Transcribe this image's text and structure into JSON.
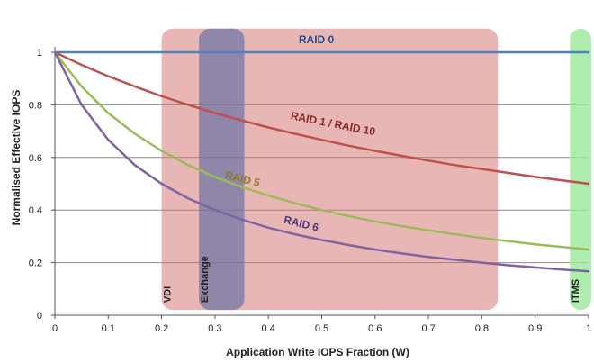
{
  "chart_data": {
    "type": "line",
    "xlabel": "Application Write IOPS Fraction (W)",
    "ylabel": "Normalised Effective IOPS",
    "xlim": [
      0,
      1
    ],
    "ylim": [
      0,
      1
    ],
    "x_ticks": [
      "0",
      "0.1",
      "0.2",
      "0.3",
      "0.4",
      "0.5",
      "0.6",
      "0.7",
      "0.8",
      "0.9",
      "1"
    ],
    "y_ticks": [
      "0",
      "0.2",
      "0.4",
      "0.6",
      "0.8",
      "1"
    ],
    "grid": "horizontal",
    "x": [
      0,
      0.05,
      0.1,
      0.15,
      0.2,
      0.25,
      0.3,
      0.35,
      0.4,
      0.45,
      0.5,
      0.55,
      0.6,
      0.65,
      0.7,
      0.75,
      0.8,
      0.85,
      0.9,
      0.95,
      1
    ],
    "series": [
      {
        "name": "RAID 0",
        "color": "#4f81bd",
        "values": [
          1,
          1,
          1,
          1,
          1,
          1,
          1,
          1,
          1,
          1,
          1,
          1,
          1,
          1,
          1,
          1,
          1,
          1,
          1,
          1,
          1
        ]
      },
      {
        "name": "RAID 1 / RAID 10",
        "color": "#c0504d",
        "values": [
          1,
          0.952,
          0.909,
          0.87,
          0.833,
          0.8,
          0.769,
          0.741,
          0.714,
          0.69,
          0.667,
          0.645,
          0.625,
          0.606,
          0.588,
          0.571,
          0.556,
          0.541,
          0.526,
          0.513,
          0.5
        ]
      },
      {
        "name": "RAID 5",
        "color": "#9bbb59",
        "values": [
          1,
          0.87,
          0.769,
          0.69,
          0.625,
          0.571,
          0.526,
          0.488,
          0.455,
          0.426,
          0.4,
          0.377,
          0.357,
          0.339,
          0.323,
          0.308,
          0.294,
          0.282,
          0.27,
          0.26,
          0.25
        ]
      },
      {
        "name": "RAID 6",
        "color": "#8064a2",
        "values": [
          1,
          0.8,
          0.667,
          0.571,
          0.5,
          0.444,
          0.4,
          0.364,
          0.333,
          0.308,
          0.286,
          0.267,
          0.25,
          0.235,
          0.222,
          0.211,
          0.2,
          0.19,
          0.182,
          0.174,
          0.167
        ]
      }
    ],
    "series_labels": [
      {
        "text": "RAID 0",
        "color": "#2e4a8a",
        "x": 0.49,
        "y": 1.035,
        "angle": 0
      },
      {
        "text": "RAID 1 / RAID 10",
        "color": "#8b2a25",
        "x": 0.52,
        "y": 0.715,
        "angle": 11
      },
      {
        "text": "RAID 5",
        "color": "#8a7a2a",
        "x": 0.35,
        "y": 0.505,
        "angle": 14
      },
      {
        "text": "RAID 6",
        "color": "#4b3a7a",
        "x": 0.46,
        "y": 0.335,
        "angle": 14
      }
    ],
    "regions": [
      {
        "label": "VDI",
        "x0": 0.2,
        "x1": 0.83,
        "y0": 0.02,
        "y1": 1.09,
        "fill": "#d46e6e",
        "opacity": 0.5
      },
      {
        "label": "Exchange",
        "x0": 0.27,
        "x1": 0.355,
        "y0": 0.02,
        "y1": 1.09,
        "fill": "#7075a6",
        "opacity": 0.75
      },
      {
        "label": "ITMS",
        "x0": 0.965,
        "x1": 1.005,
        "y0": 0.02,
        "y1": 1.09,
        "fill": "#9be89b",
        "opacity": 0.8
      }
    ]
  }
}
